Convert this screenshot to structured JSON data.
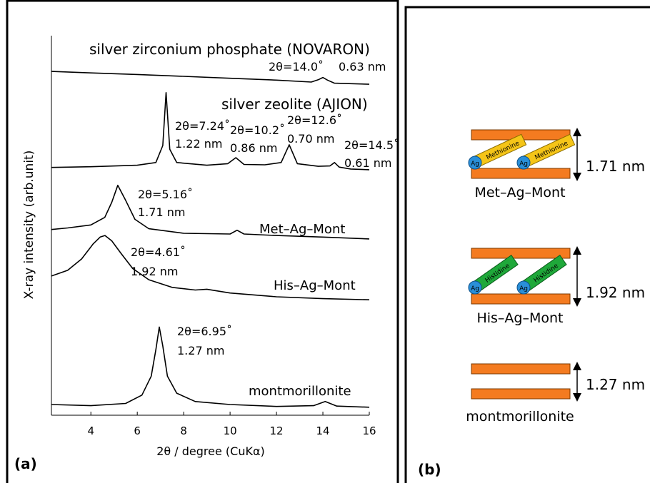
{
  "chart_data": {
    "type": "line",
    "panel_label": "(a)",
    "x_label": "2θ / degree (CuKα)",
    "y_label": "X-ray intensity (arb.unit)",
    "xlim": [
      2.3,
      16
    ],
    "xticks": [
      4,
      6,
      8,
      10,
      12,
      14,
      16
    ],
    "ylim": [
      0,
      100
    ],
    "series": [
      {
        "name": "silver zirconium phosphate (NOVARON)",
        "color": "#000000",
        "x": [
          2.3,
          4,
          6,
          8,
          10,
          12,
          13.5,
          13.8,
          14.0,
          14.2,
          14.5,
          16
        ],
        "values": [
          89.6,
          89.2,
          88.8,
          88.3,
          87.8,
          87.3,
          86.8,
          87.4,
          88.0,
          87.3,
          86.5,
          86.2
        ]
      },
      {
        "name": "silver zeolite (AJION)",
        "color": "#000000",
        "x": [
          2.3,
          4,
          6,
          6.8,
          7.1,
          7.24,
          7.4,
          7.7,
          9,
          9.9,
          10.25,
          10.6,
          11.5,
          12.2,
          12.55,
          12.9,
          13.8,
          14.3,
          14.5,
          14.7,
          15.2,
          16
        ],
        "values": [
          64.2,
          64.4,
          64.8,
          65.5,
          70,
          84,
          69,
          65.5,
          64.8,
          65.2,
          66.8,
          65,
          64.9,
          65.5,
          70.2,
          65.2,
          64.5,
          64.6,
          65.5,
          64.3,
          63.8,
          63.6
        ]
      },
      {
        "name": "Met–Ag–Mont",
        "color": "#000000",
        "x": [
          2.3,
          3,
          4,
          4.6,
          4.9,
          5.16,
          5.5,
          5.9,
          6.5,
          8,
          10,
          10.3,
          10.6,
          12,
          14,
          16
        ],
        "values": [
          47.8,
          48.2,
          49,
          51,
          55,
          59.5,
          55.5,
          50.5,
          48,
          46.8,
          46.6,
          47.6,
          46.6,
          46.2,
          45.8,
          45.3
        ]
      },
      {
        "name": "His–Ag–Mont",
        "color": "#000000",
        "x": [
          2.3,
          3,
          3.6,
          4.1,
          4.4,
          4.61,
          4.9,
          5.3,
          5.8,
          6.5,
          7.5,
          8.5,
          9,
          10,
          12,
          14,
          16
        ],
        "values": [
          35.5,
          37,
          40,
          44,
          45.8,
          46.2,
          44.8,
          41.5,
          37.5,
          34.5,
          32.5,
          31.8,
          32,
          31,
          30,
          29.5,
          29.2
        ]
      },
      {
        "name": "montmorillonite",
        "color": "#000000",
        "x": [
          2.3,
          4,
          5.5,
          6.2,
          6.6,
          6.8,
          6.95,
          7.1,
          7.3,
          7.7,
          8.5,
          10,
          12,
          13.6,
          14.1,
          14.6,
          16
        ],
        "values": [
          1.5,
          1.2,
          1.8,
          4,
          9,
          16,
          22,
          17,
          9,
          4.5,
          2.3,
          1.5,
          1,
          1.2,
          2.3,
          1.1,
          0.8
        ]
      }
    ],
    "annotations": [
      "2θ=14.0˚",
      "0.63 nm",
      "2θ=7.24˚",
      "1.22 nm",
      "2θ=10.2˚",
      "0.86 nm",
      "2θ=12.6˚",
      "0.70 nm",
      "2θ=14.5˚",
      "0.61 nm",
      "2θ=5.16˚",
      "1.71 nm",
      "2θ=4.61˚",
      "1.92 nm",
      "2θ=6.95˚",
      "1.27 nm"
    ]
  },
  "diagram": {
    "panel_label": "(b)",
    "metal": "Ag",
    "structures": [
      {
        "name": "Met–Ag–Mont",
        "spacing": "1.71 nm",
        "molecule": "Methionine"
      },
      {
        "name": "His–Ag–Mont",
        "spacing": "1.92 nm",
        "molecule": "Histidine"
      },
      {
        "name": "montmorillonite",
        "spacing": "1.27 nm"
      }
    ]
  }
}
